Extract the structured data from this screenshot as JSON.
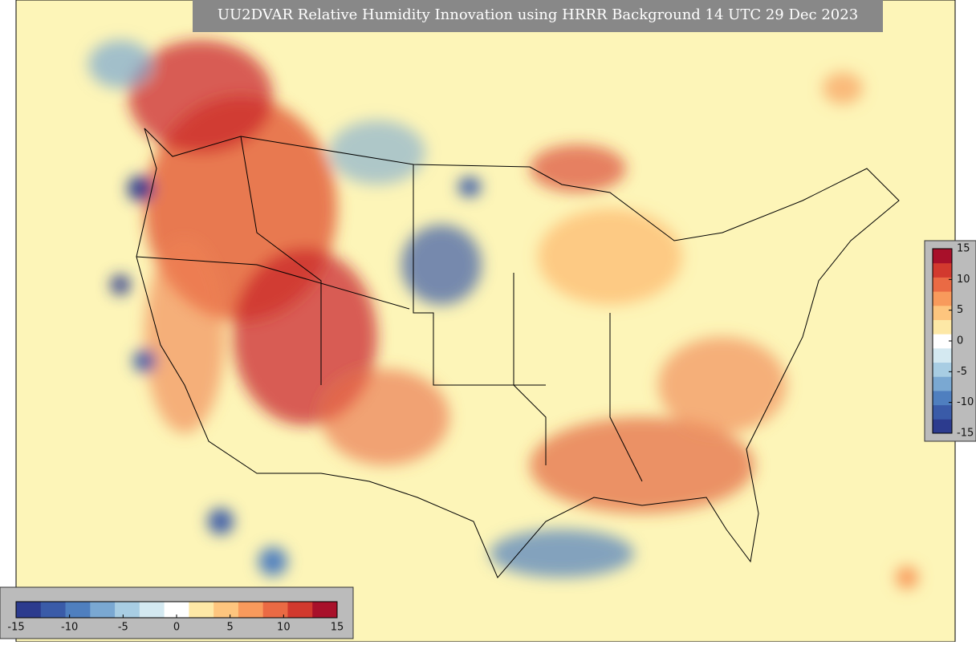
{
  "title": "UU2DVAR Relative Humidity Innovation using HRRR Background 14 UTC 29 Dec 2023",
  "colorbars": [
    {
      "orientation": "vertical",
      "lim": [
        -15,
        15
      ],
      "ticks": [
        -15,
        -10,
        -5,
        0,
        5,
        10,
        15
      ],
      "colors": [
        "#2c3b8e",
        "#3a5ba8",
        "#4f7fbf",
        "#7aa8d2",
        "#a8cde3",
        "#d4e9f1",
        "#ffffff",
        "#fde8a6",
        "#fdc57e",
        "#f89a5c",
        "#ea6a44",
        "#d2392e",
        "#a8102a"
      ]
    },
    {
      "orientation": "horizontal",
      "lim": [
        -15,
        15
      ],
      "ticks": [
        -15,
        -10,
        -5,
        0,
        5,
        10,
        15
      ],
      "colors": [
        "#2c3b8e",
        "#3a5ba8",
        "#4f7fbf",
        "#7aa8d2",
        "#a8cde3",
        "#d4e9f1",
        "#ffffff",
        "#fde8a6",
        "#fdc57e",
        "#f89a5c",
        "#ea6a44",
        "#d2392e",
        "#a8102a"
      ]
    }
  ]
}
